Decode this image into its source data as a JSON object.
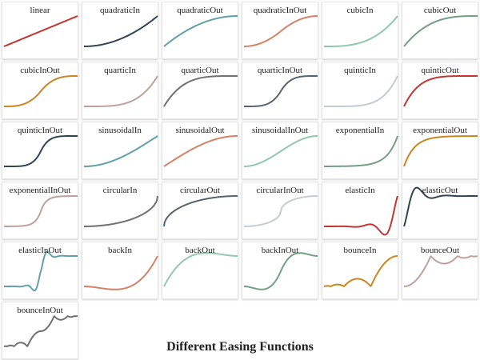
{
  "title": "Different Easing Functions",
  "chart_data": {
    "type": "line",
    "title": "Different Easing Functions",
    "grid": false,
    "x": [
      0,
      1
    ],
    "charts": [
      {
        "name": "linear",
        "color": "#c23531"
      },
      {
        "name": "quadraticIn",
        "color": "#2f4554"
      },
      {
        "name": "quadraticOut",
        "color": "#61a0a8"
      },
      {
        "name": "quadraticInOut",
        "color": "#d48265"
      },
      {
        "name": "cubicIn",
        "color": "#91c7ae"
      },
      {
        "name": "cubicOut",
        "color": "#749f83"
      },
      {
        "name": "cubicInOut",
        "color": "#ca8622"
      },
      {
        "name": "quarticIn",
        "color": "#bda29a"
      },
      {
        "name": "quarticOut",
        "color": "#6e7074"
      },
      {
        "name": "quarticInOut",
        "color": "#546570"
      },
      {
        "name": "quinticIn",
        "color": "#c4ccd3"
      },
      {
        "name": "quinticOut",
        "color": "#c23531"
      },
      {
        "name": "quinticInOut",
        "color": "#2f4554"
      },
      {
        "name": "sinusoidalIn",
        "color": "#61a0a8"
      },
      {
        "name": "sinusoidalOut",
        "color": "#d48265"
      },
      {
        "name": "sinusoidalInOut",
        "color": "#91c7ae"
      },
      {
        "name": "exponentialIn",
        "color": "#749f83"
      },
      {
        "name": "exponentialOut",
        "color": "#ca8622"
      },
      {
        "name": "exponentialInOut",
        "color": "#bda29a"
      },
      {
        "name": "circularIn",
        "color": "#6e7074"
      },
      {
        "name": "circularOut",
        "color": "#546570"
      },
      {
        "name": "circularInOut",
        "color": "#c4ccd3"
      },
      {
        "name": "elasticIn",
        "color": "#c23531"
      },
      {
        "name": "elasticOut",
        "color": "#2f4554"
      },
      {
        "name": "elasticInOut",
        "color": "#61a0a8"
      },
      {
        "name": "backIn",
        "color": "#d48265"
      },
      {
        "name": "backOut",
        "color": "#91c7ae"
      },
      {
        "name": "backInOut",
        "color": "#749f83"
      },
      {
        "name": "bounceIn",
        "color": "#ca8622"
      },
      {
        "name": "bounceOut",
        "color": "#bda29a"
      },
      {
        "name": "bounceInOut",
        "color": "#6e7074"
      }
    ]
  }
}
